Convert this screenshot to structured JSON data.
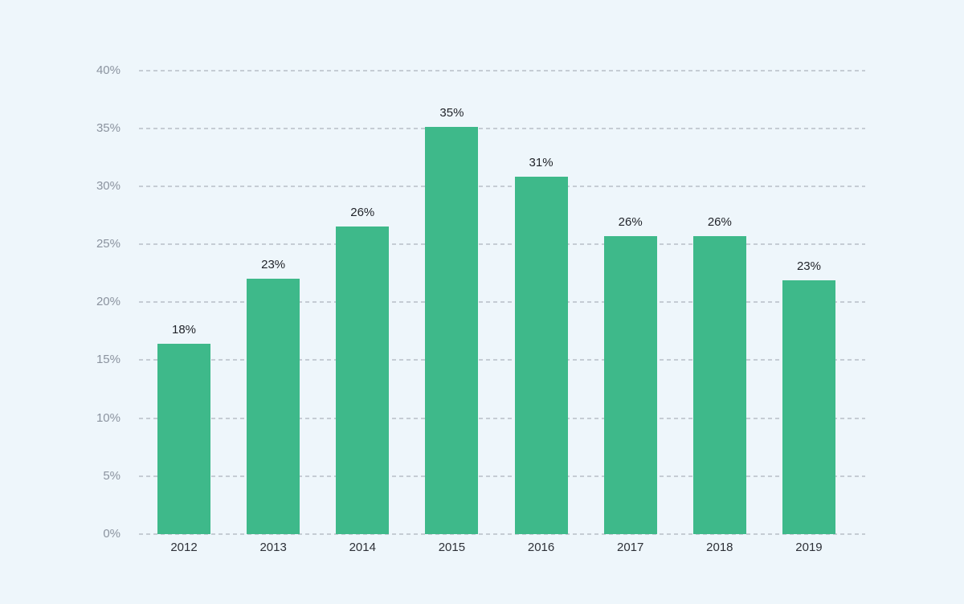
{
  "chart_data": {
    "type": "bar",
    "categories": [
      "2012",
      "2013",
      "2014",
      "2015",
      "2016",
      "2017",
      "2018",
      "2019"
    ],
    "values": [
      18,
      23,
      26,
      35,
      31,
      26,
      26,
      23
    ],
    "bar_labels": [
      "18%",
      "23%",
      "26%",
      "35%",
      "31%",
      "26%",
      "26%",
      "23%"
    ],
    "rendered_bar_heights_pct": [
      16.4,
      22.0,
      26.5,
      35.1,
      30.8,
      25.7,
      25.7,
      21.9
    ],
    "y_ticks": [
      "0%",
      "5%",
      "10%",
      "15%",
      "20%",
      "25%",
      "30%",
      "35%",
      "40%"
    ],
    "y_tick_step": 5,
    "ylim": [
      0,
      40
    ],
    "xlabel": "",
    "ylabel": "",
    "title": "",
    "legend": "none",
    "grid": {
      "axis": "y",
      "style": "dashed"
    },
    "colors": {
      "bar": "#3eb98a",
      "background": "#eef6fb",
      "gridline": "#c5ccd4",
      "y_tick_text": "#8b939f",
      "x_tick_text": "#2d3037",
      "bar_label_text": "#1f2228"
    }
  }
}
